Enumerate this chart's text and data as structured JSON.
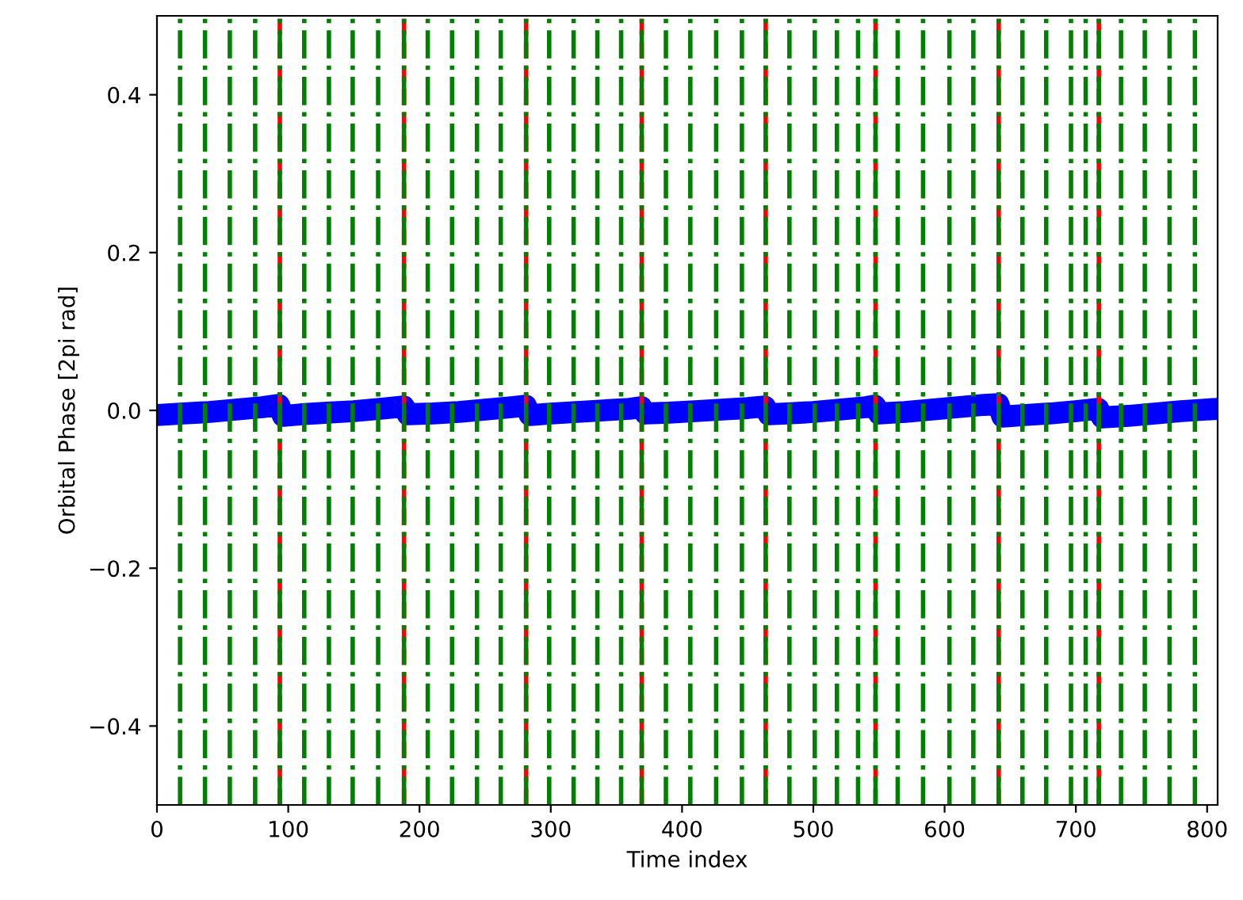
{
  "chart_data": {
    "type": "line",
    "xlabel": "Time index",
    "ylabel": "Orbital Phase [2pi rad]",
    "xlim": [
      0,
      808
    ],
    "ylim": [
      -0.5,
      0.5
    ],
    "xticks": [
      0,
      100,
      200,
      300,
      400,
      500,
      600,
      700,
      800
    ],
    "yticks": [
      {
        "value": -0.4,
        "label": "−0.4"
      },
      {
        "value": -0.2,
        "label": "−0.2"
      },
      {
        "value": 0,
        "label": "0.0"
      },
      {
        "value": 0.2,
        "label": "0.2"
      },
      {
        "value": 0.4,
        "label": "0.4"
      }
    ],
    "grid": false,
    "legend": false,
    "x": [
      0,
      20,
      40,
      60,
      80,
      93,
      96,
      110,
      130,
      150,
      170,
      188,
      191,
      210,
      230,
      250,
      270,
      281,
      284,
      300,
      320,
      340,
      360,
      369,
      372,
      390,
      410,
      430,
      450,
      463,
      466,
      480,
      500,
      520,
      540,
      547,
      550,
      570,
      590,
      610,
      630,
      641,
      644,
      660,
      680,
      700,
      717,
      720,
      740,
      760,
      780,
      808
    ],
    "series": [
      {
        "color": "#0000ff",
        "line_style": "solid",
        "values": [
          -0.006,
          -0.004,
          -0.002,
          0.001,
          0.004,
          0.007,
          -0.007,
          -0.005,
          -0.003,
          -0.001,
          0.002,
          0.005,
          -0.005,
          -0.004,
          -0.002,
          0.001,
          0.004,
          0.006,
          -0.006,
          -0.004,
          -0.002,
          0.0,
          0.002,
          0.004,
          -0.004,
          -0.003,
          -0.001,
          0.001,
          0.003,
          0.005,
          -0.005,
          -0.004,
          -0.002,
          0.001,
          0.004,
          0.006,
          -0.004,
          -0.002,
          0.001,
          0.004,
          0.007,
          0.008,
          -0.008,
          -0.006,
          -0.004,
          -0.001,
          0.002,
          -0.009,
          -0.007,
          -0.004,
          -0.001,
          0.002
        ]
      }
    ],
    "ref_lines": [
      {
        "axis": "x",
        "value": 93.6,
        "color": "#ff0000",
        "line_style": "dashed"
      },
      {
        "axis": "x",
        "value": 188.2,
        "color": "#ff0000",
        "line_style": "dashed"
      },
      {
        "axis": "x",
        "value": 281.2,
        "color": "#ff0000",
        "line_style": "dashed"
      },
      {
        "axis": "x",
        "value": 369.3,
        "color": "#ff0000",
        "line_style": "dashed"
      },
      {
        "axis": "x",
        "value": 463.7,
        "color": "#ff0000",
        "line_style": "dashed"
      },
      {
        "axis": "x",
        "value": 547.4,
        "color": "#ff0000",
        "line_style": "dashed"
      },
      {
        "axis": "x",
        "value": 641.2,
        "color": "#ff0000",
        "line_style": "dashed"
      },
      {
        "axis": "x",
        "value": 717.5,
        "color": "#ff0000",
        "line_style": "dashed"
      },
      {
        "axis": "x",
        "value": 17.6,
        "color": "#008000",
        "line_style": "dashdot"
      },
      {
        "axis": "x",
        "value": 36.6,
        "color": "#008000",
        "line_style": "dashdot"
      },
      {
        "axis": "x",
        "value": 55.5,
        "color": "#008000",
        "line_style": "dashdot"
      },
      {
        "axis": "x",
        "value": 74.8,
        "color": "#008000",
        "line_style": "dashdot"
      },
      {
        "axis": "x",
        "value": 93.6,
        "color": "#008000",
        "line_style": "dashdot"
      },
      {
        "axis": "x",
        "value": 112.2,
        "color": "#008000",
        "line_style": "dashdot"
      },
      {
        "axis": "x",
        "value": 131.0,
        "color": "#008000",
        "line_style": "dashdot"
      },
      {
        "axis": "x",
        "value": 149.1,
        "color": "#008000",
        "line_style": "dashdot"
      },
      {
        "axis": "x",
        "value": 168.5,
        "color": "#008000",
        "line_style": "dashdot"
      },
      {
        "axis": "x",
        "value": 188.2,
        "color": "#008000",
        "line_style": "dashdot"
      },
      {
        "axis": "x",
        "value": 206.3,
        "color": "#008000",
        "line_style": "dashdot"
      },
      {
        "axis": "x",
        "value": 224.8,
        "color": "#008000",
        "line_style": "dashdot"
      },
      {
        "axis": "x",
        "value": 243.8,
        "color": "#008000",
        "line_style": "dashdot"
      },
      {
        "axis": "x",
        "value": 261.9,
        "color": "#008000",
        "line_style": "dashdot"
      },
      {
        "axis": "x",
        "value": 281.2,
        "color": "#008000",
        "line_style": "dashdot"
      },
      {
        "axis": "x",
        "value": 298.8,
        "color": "#008000",
        "line_style": "dashdot"
      },
      {
        "axis": "x",
        "value": 317.4,
        "color": "#008000",
        "line_style": "dashdot"
      },
      {
        "axis": "x",
        "value": 335.5,
        "color": "#008000",
        "line_style": "dashdot"
      },
      {
        "axis": "x",
        "value": 353.6,
        "color": "#008000",
        "line_style": "dashdot"
      },
      {
        "axis": "x",
        "value": 369.3,
        "color": "#008000",
        "line_style": "dashdot"
      },
      {
        "axis": "x",
        "value": 387.7,
        "color": "#008000",
        "line_style": "dashdot"
      },
      {
        "axis": "x",
        "value": 406.3,
        "color": "#008000",
        "line_style": "dashdot"
      },
      {
        "axis": "x",
        "value": 426.0,
        "color": "#008000",
        "line_style": "dashdot"
      },
      {
        "axis": "x",
        "value": 445.6,
        "color": "#008000",
        "line_style": "dashdot"
      },
      {
        "axis": "x",
        "value": 463.7,
        "color": "#008000",
        "line_style": "dashdot"
      },
      {
        "axis": "x",
        "value": 481.8,
        "color": "#008000",
        "line_style": "dashdot"
      },
      {
        "axis": "x",
        "value": 501.1,
        "color": "#008000",
        "line_style": "dashdot"
      },
      {
        "axis": "x",
        "value": 518.0,
        "color": "#008000",
        "line_style": "dashdot"
      },
      {
        "axis": "x",
        "value": 534.1,
        "color": "#008000",
        "line_style": "dashdot"
      },
      {
        "axis": "x",
        "value": 547.4,
        "color": "#008000",
        "line_style": "dashdot"
      },
      {
        "axis": "x",
        "value": 564.3,
        "color": "#008000",
        "line_style": "dashdot"
      },
      {
        "axis": "x",
        "value": 583.6,
        "color": "#008000",
        "line_style": "dashdot"
      },
      {
        "axis": "x",
        "value": 603.7,
        "color": "#008000",
        "line_style": "dashdot"
      },
      {
        "axis": "x",
        "value": 621.9,
        "color": "#008000",
        "line_style": "dashdot"
      },
      {
        "axis": "x",
        "value": 641.2,
        "color": "#008000",
        "line_style": "dashdot"
      },
      {
        "axis": "x",
        "value": 659.3,
        "color": "#008000",
        "line_style": "dashdot"
      },
      {
        "axis": "x",
        "value": 677.4,
        "color": "#008000",
        "line_style": "dashdot"
      },
      {
        "axis": "x",
        "value": 696.3,
        "color": "#008000",
        "line_style": "dashdot"
      },
      {
        "axis": "x",
        "value": 707.5,
        "color": "#008000",
        "line_style": "dashdot"
      },
      {
        "axis": "x",
        "value": 717.5,
        "color": "#008000",
        "line_style": "dashdot"
      },
      {
        "axis": "x",
        "value": 734.4,
        "color": "#008000",
        "line_style": "dashdot"
      },
      {
        "axis": "x",
        "value": 752.5,
        "color": "#008000",
        "line_style": "dashdot"
      },
      {
        "axis": "x",
        "value": 771.4,
        "color": "#008000",
        "line_style": "dashdot"
      },
      {
        "axis": "x",
        "value": 790.7,
        "color": "#008000",
        "line_style": "dashdot"
      }
    ]
  }
}
